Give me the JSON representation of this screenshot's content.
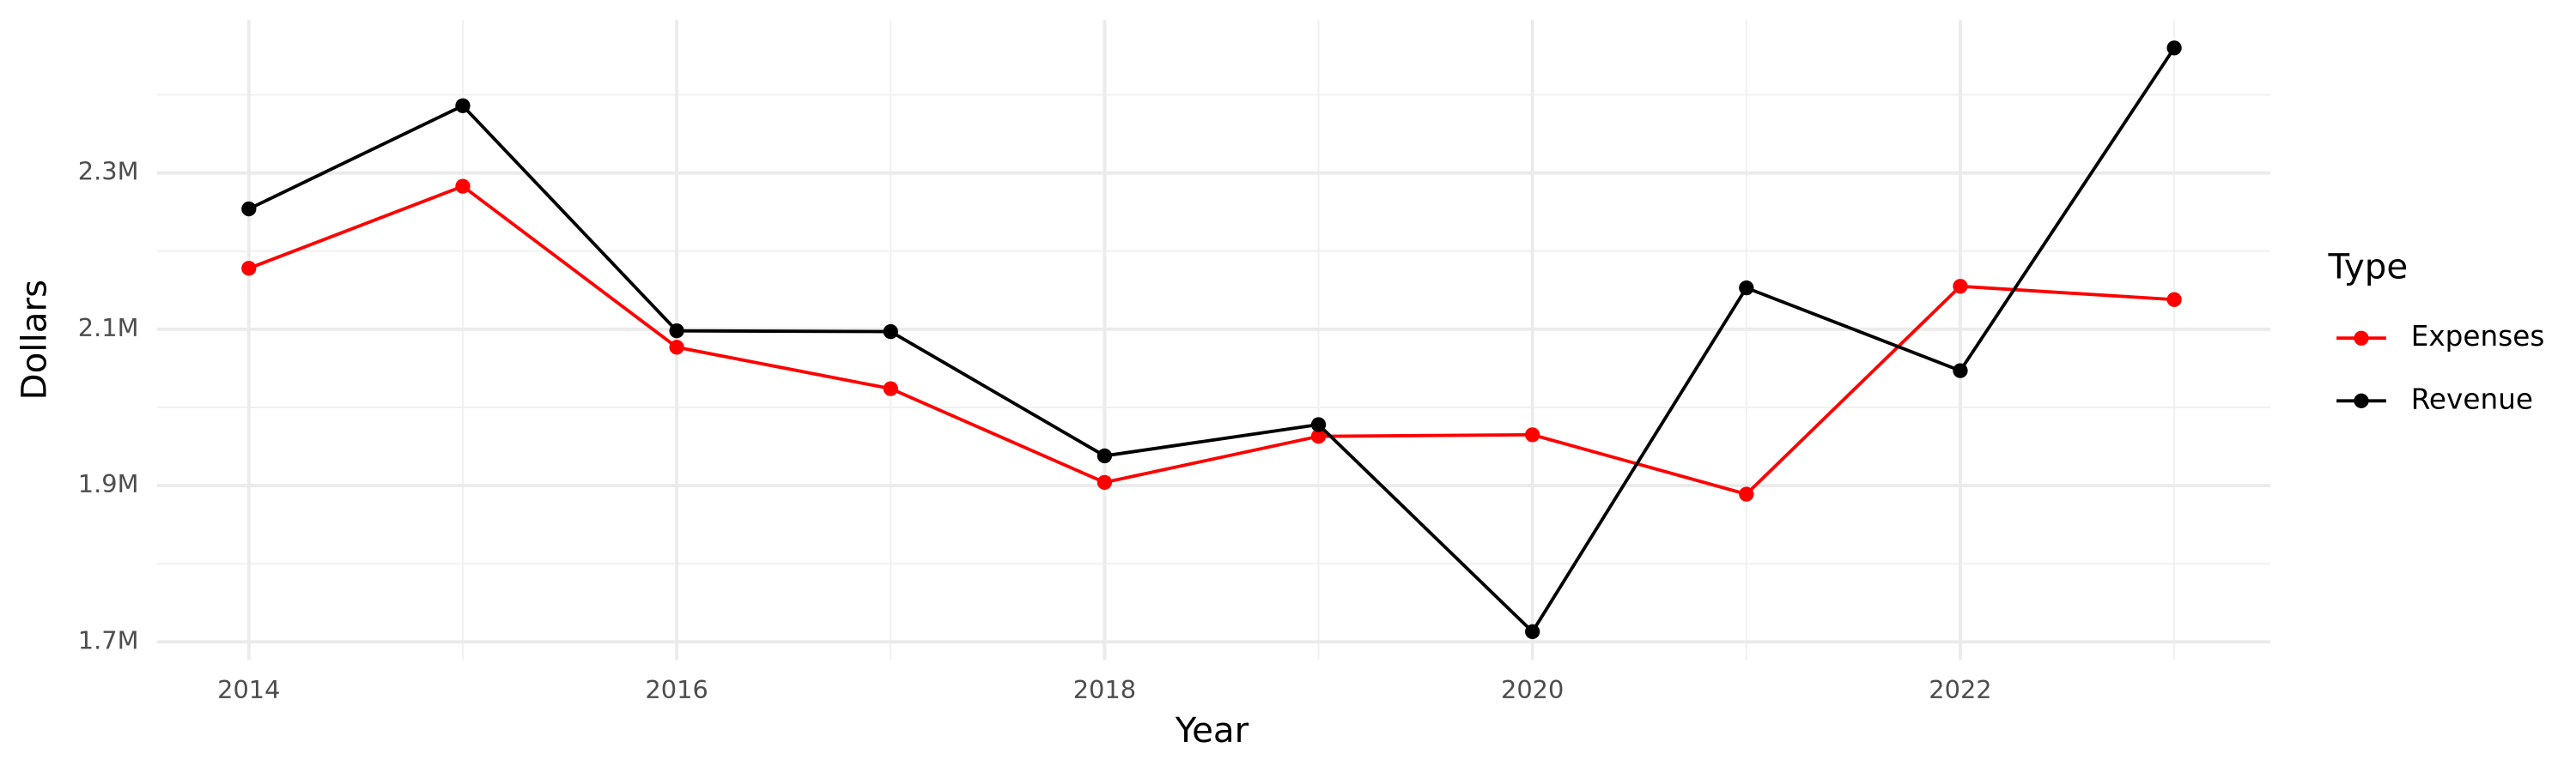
{
  "chart_data": {
    "type": "line",
    "x_label": "Year",
    "y_label": "Dollars",
    "legend_title": "Type",
    "legend": "right",
    "grid": true,
    "x": [
      2014,
      2015,
      2016,
      2017,
      2018,
      2019,
      2020,
      2021,
      2022,
      2023
    ],
    "series": [
      {
        "name": "Expenses",
        "color": "#ff0000",
        "values": [
          2178000,
          2283000,
          2077000,
          2024000,
          1904000,
          1963000,
          1965000,
          1889000,
          2155000,
          2138000
        ]
      },
      {
        "name": "Revenue",
        "color": "#000000",
        "values": [
          2254000,
          2386000,
          2098000,
          2097000,
          1938000,
          1978000,
          1713000,
          2153000,
          2047000,
          2460000
        ]
      }
    ],
    "xlim": [
      2013.57,
      2023.45
    ],
    "xticks": [
      2014,
      2016,
      2018,
      2020,
      2022
    ],
    "xminor": [
      2015,
      2017,
      2019,
      2021,
      2023
    ],
    "ylim": [
      1677000,
      2496000
    ],
    "yticks": [
      {
        "value": 1700000,
        "label": "1.7M"
      },
      {
        "value": 1900000,
        "label": "1.9M"
      },
      {
        "value": 2100000,
        "label": "2.1M"
      },
      {
        "value": 2300000,
        "label": "2.3M"
      }
    ],
    "yminor": [
      1800000,
      2000000,
      2200000,
      2400000
    ]
  }
}
